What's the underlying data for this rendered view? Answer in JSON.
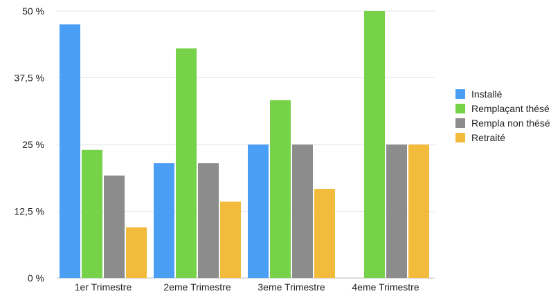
{
  "chart_data": {
    "type": "bar",
    "categories": [
      "1er Trimestre",
      "2eme Trimestre",
      "3eme Trimestre",
      "4eme Trimestre"
    ],
    "series": [
      {
        "name": "Installé",
        "color": "#4a9ff5",
        "values": [
          47.5,
          21.5,
          25,
          0
        ]
      },
      {
        "name": "Remplaçant thésé",
        "color": "#76d248",
        "values": [
          24,
          43,
          33.3,
          50
        ]
      },
      {
        "name": "Rempla non thésé",
        "color": "#8c8c8c",
        "values": [
          19.2,
          21.5,
          25,
          25
        ]
      },
      {
        "name": "Retraité",
        "color": "#f2bb3b",
        "values": [
          9.5,
          14.3,
          16.7,
          25
        ]
      }
    ],
    "yticks": [
      "0 %",
      "12,5 %",
      "25 %",
      "37,5 %",
      "50 %"
    ],
    "ylim": [
      0,
      50
    ],
    "grid": true,
    "legend_position": "right"
  }
}
